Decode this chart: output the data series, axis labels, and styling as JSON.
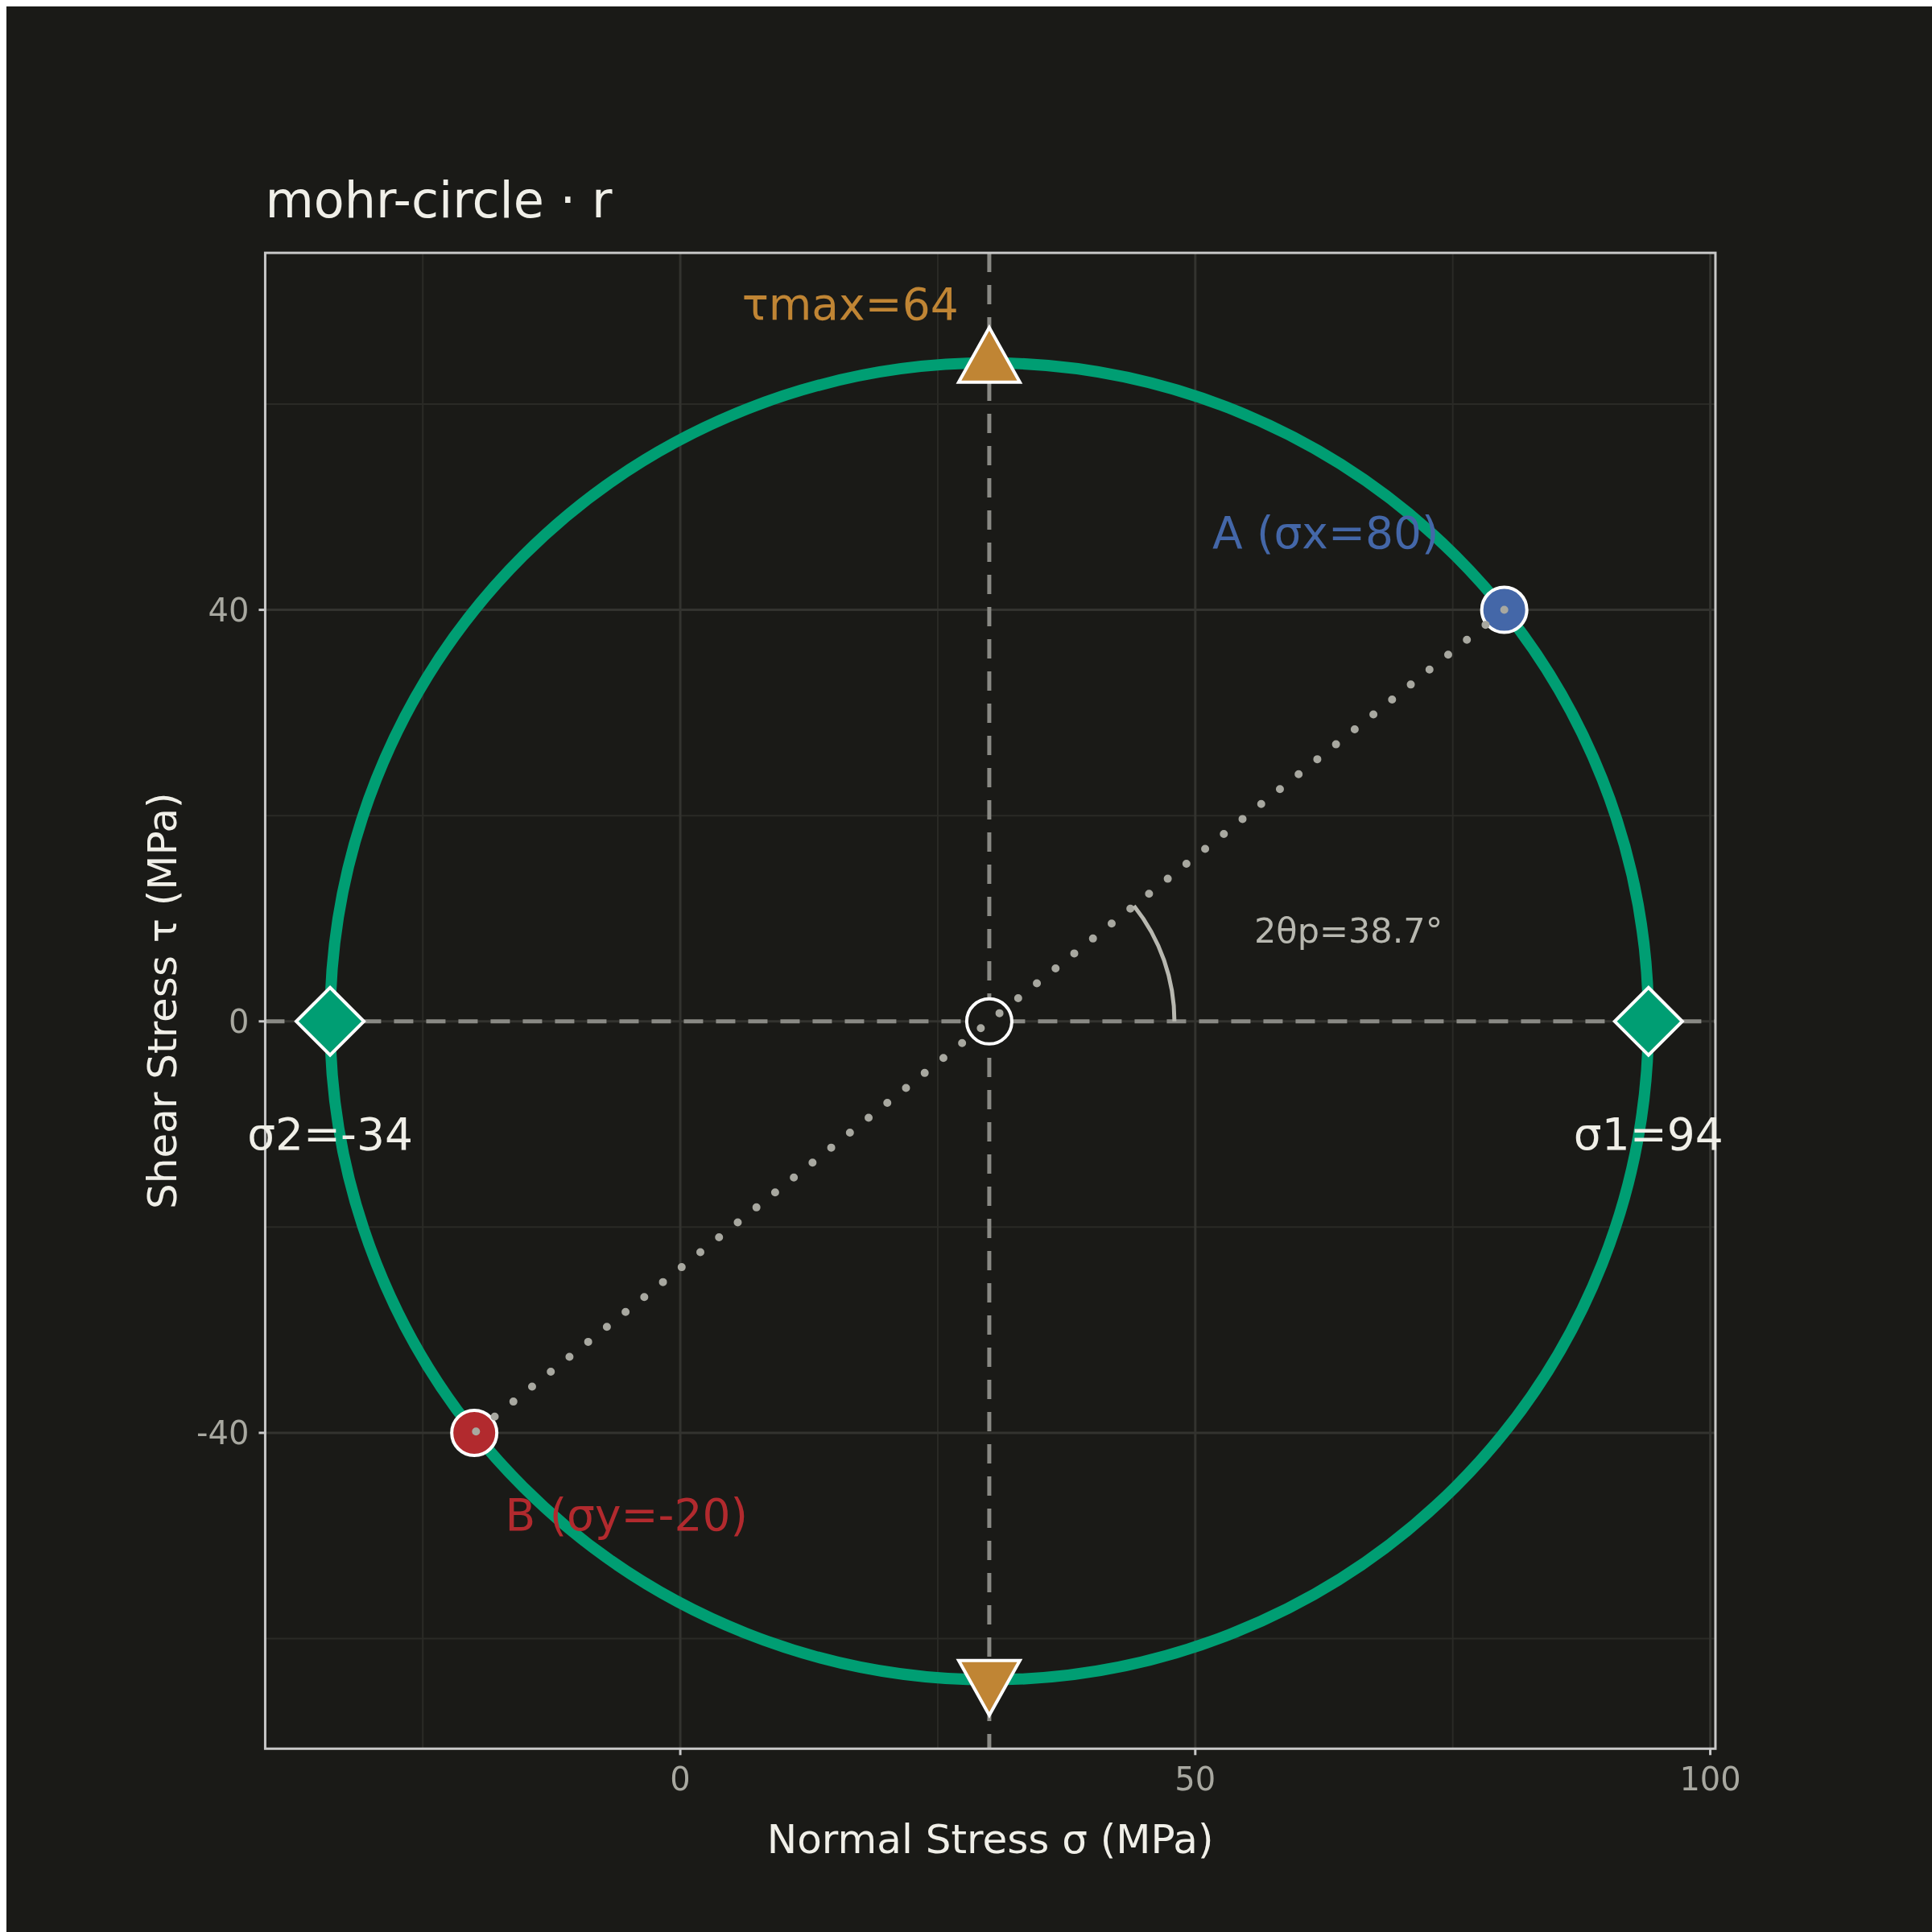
{
  "chart_data": {
    "type": "line",
    "title": "mohr-circle · r",
    "xlabel": "Normal Stress σ (MPa)",
    "ylabel": "Shear Stress τ (MPa)",
    "xlim": [
      -40.3,
      100.5
    ],
    "ylim": [
      -70.7,
      74.7
    ],
    "xticks": [
      0,
      50,
      100
    ],
    "yticks": [
      -40,
      0,
      40
    ],
    "grid": true,
    "series": [
      {
        "line_style": "dotted",
        "color": "#a8a8a0",
        "x": [
          80,
          -20
        ],
        "values": [
          40,
          -40
        ]
      },
      {
        "type": "scatter",
        "marker": "circle",
        "color": "#4467a8",
        "x": [
          80
        ],
        "values": [
          40
        ]
      },
      {
        "type": "scatter",
        "marker": "circle",
        "color": "#b22a2e",
        "x": [
          -20
        ],
        "values": [
          -40
        ]
      },
      {
        "type": "scatter",
        "marker": "circle",
        "color": "#1a1a17",
        "x": [
          30
        ],
        "values": [
          0
        ]
      },
      {
        "type": "scatter",
        "marker": "diamond",
        "color": "#009e73",
        "x": [
          94,
          -34
        ],
        "values": [
          0,
          0
        ]
      },
      {
        "type": "scatter",
        "marker": "triangle",
        "color": "#c08534",
        "x": [
          30,
          30
        ],
        "values": [
          64,
          -64
        ]
      }
    ],
    "ref_lines": [
      {
        "axis": "y",
        "value": 0,
        "line_style": "dashed",
        "color": "#8a8a85"
      },
      {
        "axis": "x",
        "value": 30,
        "line_style": "dashed",
        "color": "#8a8a85"
      }
    ],
    "annotations": [
      {
        "text": "τmax=64",
        "x": 30,
        "y": 64
      },
      {
        "text": "A  (σx=80)",
        "x": 80,
        "y": 40
      },
      {
        "text": "B  (σy=-20)",
        "x": -20,
        "y": -40
      },
      {
        "text": "σ1=94",
        "x": 94,
        "y": 0
      },
      {
        "text": "σ2=-34",
        "x": -34,
        "y": 0
      },
      "2θp=38.7°"
    ]
  }
}
